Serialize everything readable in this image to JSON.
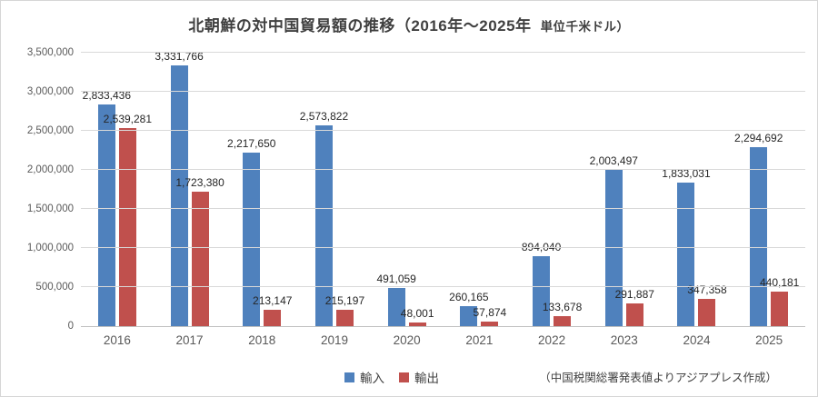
{
  "title": {
    "main": "北朝鮮の対中国貿易額の推移（2016年～2025年",
    "unit": "単位千米ドル）"
  },
  "chart_data": {
    "type": "bar",
    "categories": [
      "2016",
      "2017",
      "2018",
      "2019",
      "2020",
      "2021",
      "2022",
      "2023",
      "2024",
      "2025"
    ],
    "series": [
      {
        "name": "輸入",
        "key": "import",
        "color": "#4F81BD",
        "values": [
          2833436,
          3331766,
          2217650,
          2573822,
          491059,
          260165,
          894040,
          2003497,
          1833031,
          2294692
        ]
      },
      {
        "name": "輸出",
        "key": "export",
        "color": "#C0504D",
        "values": [
          2539281,
          1723380,
          213147,
          215197,
          48001,
          57874,
          133678,
          291887,
          347358,
          440181
        ]
      }
    ],
    "title": "北朝鮮の対中国貿易額の推移（2016年～2025年　単位千米ドル）",
    "xlabel": "",
    "ylabel": "",
    "ylim": [
      0,
      3500000
    ],
    "ytick_step": 500000,
    "grid": true,
    "legend_position": "bottom",
    "data_labels": true,
    "source_note": "（中国税関総署発表値よりアジアプレス作成）"
  },
  "colors": {
    "gridline": "#d9d9d9",
    "axis_text": "#595959",
    "title_text": "#404040",
    "data_label_text": "#262626"
  }
}
